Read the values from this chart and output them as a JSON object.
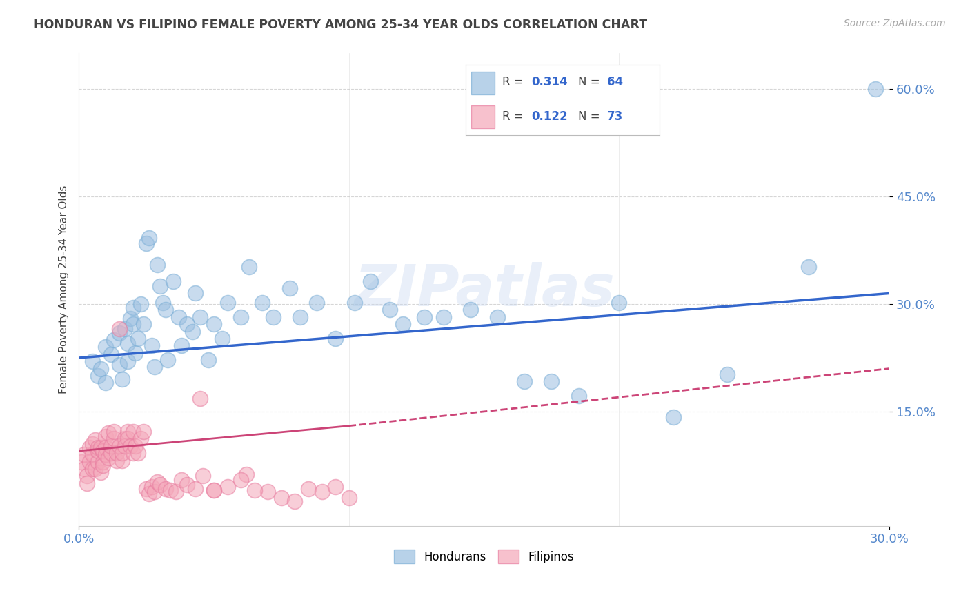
{
  "title": "HONDURAN VS FILIPINO FEMALE POVERTY AMONG 25-34 YEAR OLDS CORRELATION CHART",
  "source": "Source: ZipAtlas.com",
  "ylabel": "Female Poverty Among 25-34 Year Olds",
  "xlim": [
    0.0,
    0.3
  ],
  "ylim": [
    -0.01,
    0.65
  ],
  "xtick_vals": [
    0.0,
    0.3
  ],
  "xtick_labels": [
    "0.0%",
    "30.0%"
  ],
  "ytick_vals": [
    0.15,
    0.3,
    0.45,
    0.6
  ],
  "ytick_labels": [
    "15.0%",
    "30.0%",
    "45.0%",
    "60.0%"
  ],
  "legend_labels": [
    "Hondurans",
    "Filipinos"
  ],
  "R_honduran": "0.314",
  "N_honduran": "64",
  "R_filipino": "0.122",
  "N_filipino": "73",
  "blue_scatter": "#9BBFE0",
  "pink_scatter": "#F4A7B9",
  "blue_edge": "#7AAED6",
  "pink_edge": "#E87DA0",
  "trend_blue": "#3366CC",
  "trend_pink": "#CC4477",
  "watermark": "ZIPatlas",
  "title_color": "#444444",
  "axis_tick_color": "#5588CC",
  "honduran_x": [
    0.005,
    0.007,
    0.008,
    0.01,
    0.01,
    0.012,
    0.013,
    0.015,
    0.015,
    0.016,
    0.017,
    0.018,
    0.018,
    0.019,
    0.02,
    0.02,
    0.021,
    0.022,
    0.023,
    0.024,
    0.025,
    0.026,
    0.027,
    0.028,
    0.029,
    0.03,
    0.031,
    0.032,
    0.033,
    0.035,
    0.037,
    0.038,
    0.04,
    0.042,
    0.043,
    0.045,
    0.048,
    0.05,
    0.053,
    0.055,
    0.06,
    0.063,
    0.068,
    0.072,
    0.078,
    0.082,
    0.088,
    0.095,
    0.102,
    0.108,
    0.115,
    0.12,
    0.128,
    0.135,
    0.145,
    0.155,
    0.165,
    0.175,
    0.185,
    0.2,
    0.22,
    0.24,
    0.27,
    0.295
  ],
  "honduran_y": [
    0.22,
    0.2,
    0.21,
    0.24,
    0.19,
    0.23,
    0.25,
    0.26,
    0.215,
    0.195,
    0.265,
    0.22,
    0.245,
    0.28,
    0.295,
    0.272,
    0.232,
    0.252,
    0.3,
    0.272,
    0.385,
    0.392,
    0.242,
    0.212,
    0.355,
    0.325,
    0.302,
    0.292,
    0.222,
    0.332,
    0.282,
    0.242,
    0.272,
    0.262,
    0.315,
    0.282,
    0.222,
    0.272,
    0.252,
    0.302,
    0.282,
    0.352,
    0.302,
    0.282,
    0.322,
    0.282,
    0.302,
    0.252,
    0.302,
    0.332,
    0.292,
    0.272,
    0.282,
    0.282,
    0.292,
    0.282,
    0.192,
    0.192,
    0.172,
    0.302,
    0.142,
    0.202,
    0.352,
    0.6
  ],
  "filipino_x": [
    0.001,
    0.002,
    0.002,
    0.003,
    0.003,
    0.004,
    0.004,
    0.005,
    0.005,
    0.005,
    0.006,
    0.006,
    0.007,
    0.007,
    0.007,
    0.008,
    0.008,
    0.009,
    0.009,
    0.009,
    0.01,
    0.01,
    0.01,
    0.011,
    0.011,
    0.012,
    0.012,
    0.013,
    0.013,
    0.014,
    0.014,
    0.015,
    0.015,
    0.016,
    0.016,
    0.017,
    0.017,
    0.018,
    0.018,
    0.019,
    0.02,
    0.02,
    0.021,
    0.022,
    0.023,
    0.024,
    0.025,
    0.026,
    0.027,
    0.028,
    0.029,
    0.03,
    0.032,
    0.034,
    0.036,
    0.038,
    0.04,
    0.043,
    0.046,
    0.05,
    0.055,
    0.062,
    0.07,
    0.075,
    0.08,
    0.085,
    0.09,
    0.095,
    0.1,
    0.045,
    0.05,
    0.06,
    0.065
  ],
  "filipino_y": [
    0.08,
    0.07,
    0.09,
    0.06,
    0.05,
    0.1,
    0.08,
    0.09,
    0.07,
    0.105,
    0.11,
    0.07,
    0.08,
    0.095,
    0.1,
    0.065,
    0.1,
    0.08,
    0.075,
    0.095,
    0.115,
    0.1,
    0.09,
    0.085,
    0.12,
    0.092,
    0.102,
    0.112,
    0.122,
    0.082,
    0.092,
    0.265,
    0.102,
    0.082,
    0.092,
    0.112,
    0.102,
    0.122,
    0.112,
    0.102,
    0.092,
    0.122,
    0.102,
    0.092,
    0.112,
    0.122,
    0.042,
    0.035,
    0.045,
    0.038,
    0.052,
    0.048,
    0.042,
    0.04,
    0.038,
    0.055,
    0.048,
    0.042,
    0.06,
    0.04,
    0.045,
    0.062,
    0.038,
    0.03,
    0.025,
    0.042,
    0.038,
    0.045,
    0.03,
    0.168,
    0.04,
    0.055,
    0.04
  ]
}
